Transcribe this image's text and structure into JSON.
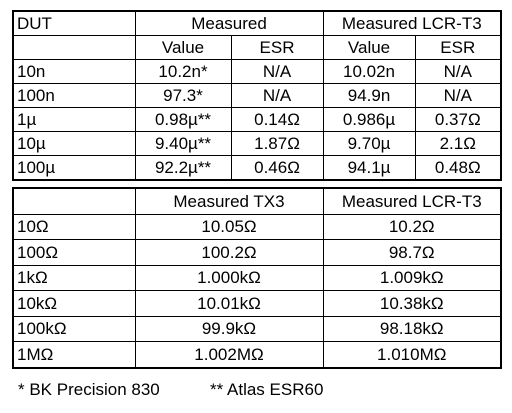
{
  "table1": {
    "header": [
      "DUT",
      "Measured",
      "Measured LCR-T3"
    ],
    "subheader": [
      "Value",
      "ESR",
      "Value",
      "ESR"
    ],
    "rows": [
      [
        "10n",
        "10.2n*",
        "N/A",
        "10.02n",
        "N/A"
      ],
      [
        "100n",
        "97.3*",
        "N/A",
        "94.9n",
        "N/A"
      ],
      [
        "1µ",
        "0.98µ**",
        "0.14Ω",
        "0.986µ",
        "0.37Ω"
      ],
      [
        "10µ",
        "9.40µ**",
        "1.87Ω",
        "9.70µ",
        "2.1Ω"
      ],
      [
        "100µ",
        "92.2µ**",
        "0.46Ω",
        "94.1µ",
        "0.48Ω"
      ]
    ]
  },
  "table2": {
    "header": [
      "Measured TX3",
      "Measured LCR-T3"
    ],
    "rows": [
      [
        "10Ω",
        "10.05Ω",
        "10.2Ω"
      ],
      [
        "100Ω",
        "100.2Ω",
        "98.7Ω"
      ],
      [
        "1kΩ",
        "1.000kΩ",
        "1.009kΩ"
      ],
      [
        "10kΩ",
        "10.01kΩ",
        "10.38kΩ"
      ],
      [
        "100kΩ",
        "99.9kΩ",
        "98.18kΩ"
      ],
      [
        "1MΩ",
        "1.002MΩ",
        "1.010MΩ"
      ]
    ]
  },
  "footnotes": [
    "* BK Precision 830",
    "** Atlas ESR60"
  ]
}
